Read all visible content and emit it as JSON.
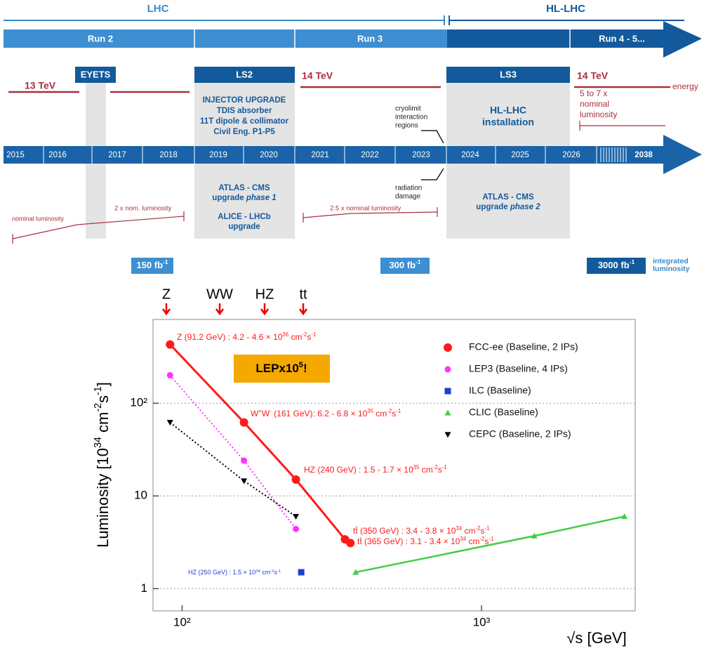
{
  "schedule": {
    "eras": [
      "LHC",
      "HL-LHC"
    ],
    "runs": [
      "Run 2",
      "Run 3",
      "Run 4 - 5..."
    ],
    "shutdowns": [
      "EYETS",
      "LS2",
      "LS3"
    ],
    "energies": [
      "13 TeV",
      "14 TeV",
      "14 TeV"
    ],
    "energy_label": "energy",
    "ls2_notes": [
      "INJECTOR UPGRADE",
      "TDIS absorber",
      "11T dipole & collimator",
      "Civil Eng. P1-P5"
    ],
    "ls3_notes": [
      "HL-LHC",
      "installation"
    ],
    "hl_lumi_note": [
      "5 to 7 x",
      "nominal",
      "luminosity"
    ],
    "cryo_note": [
      "cryolimit",
      "interaction",
      "regions"
    ],
    "radiation_note": [
      "radiation",
      "damage"
    ],
    "years": [
      "2015",
      "2016",
      "2017",
      "2018",
      "2019",
      "2020",
      "2021",
      "2022",
      "2023",
      "2024",
      "2025",
      "2026",
      "2038"
    ],
    "ls2_upgrade_1": [
      "ATLAS - CMS",
      "upgrade ",
      "phase 1"
    ],
    "ls2_upgrade_2": [
      "ALICE - LHCb",
      "upgrade"
    ],
    "ls3_upgrade": [
      "ATLAS - CMS",
      "upgrade ",
      "phase 2"
    ],
    "lumi_notes": [
      "nominal luminosity",
      "2 x nom. luminosity",
      "2.5 x nominal luminosity"
    ],
    "integrated": [
      [
        "150 fb",
        "-1"
      ],
      [
        "300 fb",
        "-1"
      ],
      [
        "3000 fb",
        "-1"
      ]
    ],
    "integrated_label": [
      "integrated",
      "luminosity"
    ]
  },
  "chart_data": {
    "type": "scatter",
    "top_labels": [
      "Z",
      "WW",
      "HZ",
      "tt"
    ],
    "x_label": "√s [GeV]",
    "y_label": [
      "Luminosity [10",
      "34",
      " cm",
      "-2",
      "s",
      "-1",
      "]"
    ],
    "badge": [
      "LEPx10",
      "5",
      "!"
    ],
    "xlog": true,
    "ylog": true,
    "xlim": [
      80,
      3260
    ],
    "ylim": [
      0.575,
      800
    ],
    "xticks": [
      {
        "value": 100,
        "label": "10²"
      },
      {
        "value": 1000,
        "label": "10³"
      }
    ],
    "yticks": [
      1,
      10,
      {
        "value": 100,
        "label": "10²"
      }
    ],
    "grid": true,
    "legend": "upper right",
    "series": [
      {
        "name": "FCC-ee (Baseline, 2 IPs)",
        "color": "#ff1a1a",
        "marker": "circle",
        "line": "solid",
        "x": [
          91.2,
          161,
          240,
          350,
          365
        ],
        "values": [
          430,
          62,
          15,
          3.4,
          3.1
        ]
      },
      {
        "name": "LEP3 (Baseline, 4 IPs)",
        "color": "#ff33ff",
        "marker": "circle",
        "line": "dotted",
        "x": [
          91.2,
          161,
          240
        ],
        "values": [
          200,
          24,
          4.4
        ]
      },
      {
        "name": "ILC (Baseline)",
        "color": "#1f3fd0",
        "marker": "square",
        "line": "none",
        "x": [
          250
        ],
        "values": [
          1.5
        ]
      },
      {
        "name": "CLIC (Baseline)",
        "color": "#44cc44",
        "marker": "triangle",
        "line": "solid",
        "x": [
          380,
          1500,
          3000
        ],
        "values": [
          1.5,
          3.7,
          6
        ]
      },
      {
        "name": "CEPC (Baseline, 2 IPs)",
        "color": "#000000",
        "marker": "triangle-down",
        "line": "dotted",
        "x": [
          91.2,
          161,
          240
        ],
        "values": [
          62,
          14.5,
          6
        ]
      }
    ],
    "annotations": [
      {
        "color": "#ff1a1a",
        "text": [
          "Z (91.2 GeV) : 4.2 - 4.6 × 10",
          "36",
          " cm",
          "-2",
          "s",
          "-1"
        ]
      },
      {
        "color": "#ff1a1a",
        "text": [
          "W",
          "+",
          "W",
          "-",
          " (161 GeV): 6.2 - 6.8 × 10",
          "35",
          " cm",
          "-2",
          "s",
          "-1"
        ]
      },
      {
        "color": "#ff1a1a",
        "text": [
          "HZ (240 GeV) : 1.5 - 1.7 × 10",
          "35",
          " cm",
          "-2",
          "s",
          "-1"
        ]
      },
      {
        "color": "#ff1a1a",
        "text": [
          "tt̄ (350 GeV) : 3.4 - 3.8 × 10",
          "34",
          " cm",
          "-2",
          "s",
          "-1"
        ]
      },
      {
        "color": "#ff1a1a",
        "text": [
          "tt̄ (365 GeV) : 3.1 - 3.4 × 10",
          "34",
          " cm",
          "-2",
          "s",
          "-1"
        ]
      },
      {
        "color": "#1f3fd0",
        "text": [
          "HZ (250 GeV) : 1.5 × 10",
          "34",
          " cm",
          "-2",
          "s",
          "-1"
        ]
      }
    ]
  }
}
